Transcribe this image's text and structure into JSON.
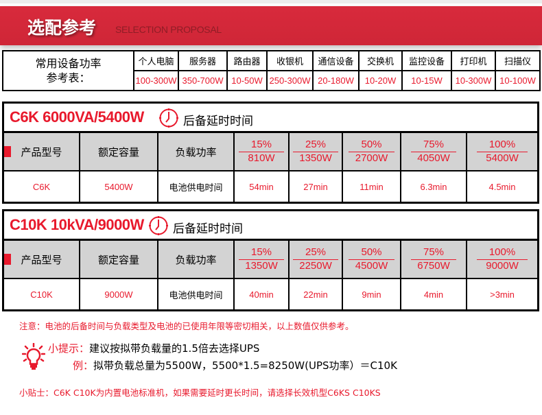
{
  "banner": {
    "title": "选配参考",
    "subtitle": "SELECTION PROPOSAL"
  },
  "reference": {
    "label_line1": "常用设备功率",
    "label_line2": "参考表：",
    "devices": [
      {
        "name": "个人电脑",
        "power": "100-300W"
      },
      {
        "name": "服务器",
        "power": "350-700W"
      },
      {
        "name": "路由器",
        "power": "10-50W"
      },
      {
        "name": "收银机",
        "power": "250-300W"
      },
      {
        "name": "通信设备",
        "power": "20-180W"
      },
      {
        "name": "交换机",
        "power": "10-20W"
      },
      {
        "name": "监控设备",
        "power": "10-15W"
      },
      {
        "name": "打印机",
        "power": "10-300W"
      },
      {
        "name": "扫描仪",
        "power": "10-100W"
      }
    ]
  },
  "headers": {
    "model": "产品型号",
    "capacity": "额定容量",
    "load": "负载功率",
    "backup": "后备延时时间",
    "row_label": "电池供电时间"
  },
  "products": [
    {
      "title": "C6K 6000VA/5400W",
      "model": "C6K",
      "capacity": "5400W",
      "loads": [
        {
          "pct": "15%",
          "watt": "810W",
          "time": "54min"
        },
        {
          "pct": "25%",
          "watt": "1350W",
          "time": "27min"
        },
        {
          "pct": "50%",
          "watt": "2700W",
          "time": "11min"
        },
        {
          "pct": "75%",
          "watt": "4050W",
          "time": "6.3min"
        },
        {
          "pct": "100%",
          "watt": "5400W",
          "time": "4.5min"
        }
      ]
    },
    {
      "title": "C10K 10kVA/9000W",
      "model": "C10K",
      "capacity": "9000W",
      "loads": [
        {
          "pct": "15%",
          "watt": "1350W",
          "time": "40min"
        },
        {
          "pct": "25%",
          "watt": "2250W",
          "time": "22min"
        },
        {
          "pct": "50%",
          "watt": "4500W",
          "time": "9min"
        },
        {
          "pct": "75%",
          "watt": "6750W",
          "time": "4min"
        },
        {
          "pct": "100%",
          "watt": "9000W",
          "time": ">3min"
        }
      ]
    }
  ],
  "notes": {
    "caution": "注意：电池的后备时间与负载类型及电池的已使用年限等密切相关，以上数值仅供参考。",
    "tip_label": "小提示：",
    "tip_text": "建议按拟带负载量的1.5倍去选择UPS",
    "example_label": "例：",
    "example_text": "拟带负载总量为5500W，5500*1.5=8250W(UPS功率）＝C10K",
    "hint": "小贴士：C6K  C10K为内置电池标准机，如果需要延时更长时间，请选择长效机型C6KS  C10KS"
  },
  "colors": {
    "accent": "#e8192c",
    "banner": "#d42a3a",
    "header_bg": "#d3d3d3"
  }
}
